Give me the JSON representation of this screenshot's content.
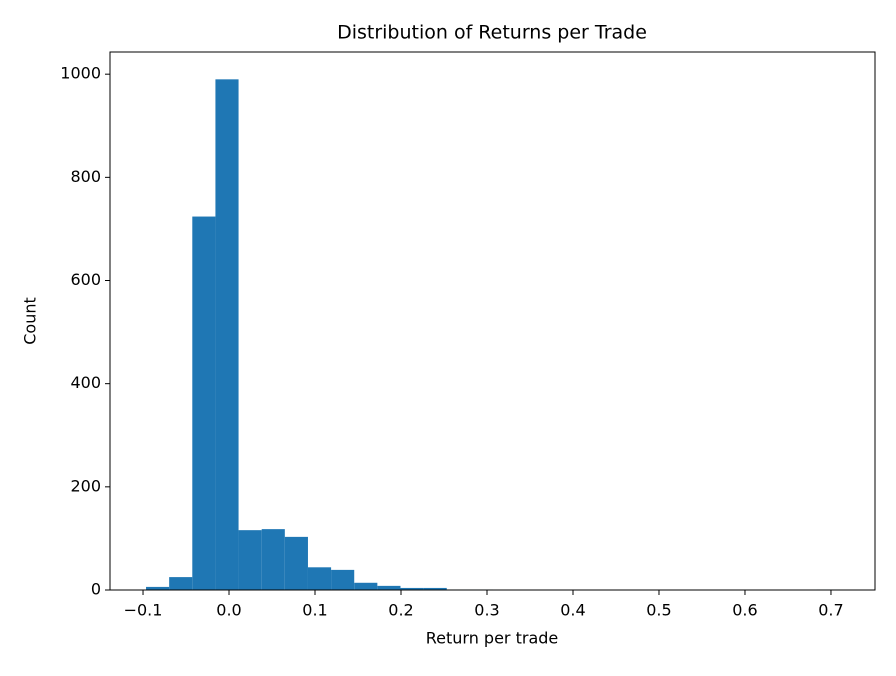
{
  "chart_data": {
    "type": "histogram",
    "title": "Distribution of Returns per Trade",
    "x_label": "Return per trade",
    "y_label": "Count",
    "color": "#1f77b4",
    "bins": [
      -0.0965,
      -0.0696,
      -0.0427,
      -0.0158,
      0.0111,
      0.038,
      0.0649,
      0.0918,
      0.1187,
      0.1456,
      0.1725,
      0.1994,
      0.2263,
      0.2532,
      0.2801,
      0.307,
      0.3339,
      0.3608,
      0.3877,
      0.4146,
      0.4415,
      0.4684,
      0.4953,
      0.5222,
      0.5491,
      0.576,
      0.6029,
      0.6298,
      0.6567,
      0.6836,
      0.7105
    ],
    "values": [
      6,
      25,
      724,
      990,
      116,
      118,
      103,
      44,
      39,
      14,
      8,
      4,
      4,
      1,
      1,
      0,
      0,
      0,
      0,
      0,
      0,
      0,
      0,
      0,
      0,
      0,
      0,
      0,
      0,
      1
    ],
    "xlim": [
      -0.1384,
      0.7512
    ],
    "ylim": [
      0,
      1043
    ],
    "xticks": [
      {
        "value": -0.1,
        "label": "−0.1"
      },
      {
        "value": 0,
        "label": "0.0"
      },
      {
        "value": 0.1,
        "label": "0.1"
      },
      {
        "value": 0.2,
        "label": "0.2"
      },
      {
        "value": 0.3,
        "label": "0.3"
      },
      {
        "value": 0.4,
        "label": "0.4"
      },
      {
        "value": 0.5,
        "label": "0.5"
      },
      {
        "value": 0.6,
        "label": "0.6"
      },
      {
        "value": 0.7,
        "label": "0.7"
      }
    ],
    "yticks": [
      0,
      200,
      400,
      600,
      800,
      1000
    ],
    "grid": false
  }
}
